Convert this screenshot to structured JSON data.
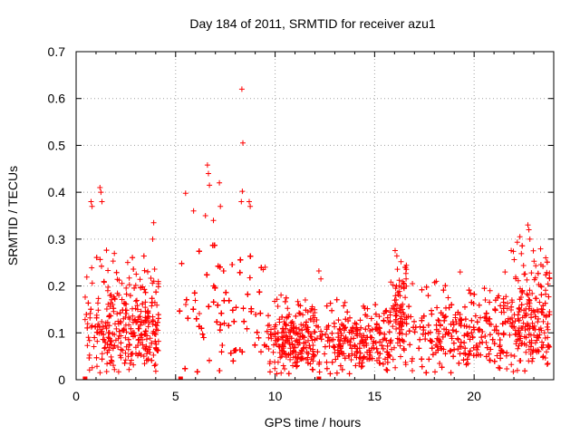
{
  "chart_data": {
    "type": "scatter",
    "title": "Day 184 of 2011, SRMTID for receiver azu1",
    "xlabel": "GPS time / hours",
    "ylabel": "SRMTID / TECUs",
    "xlim": [
      0,
      24
    ],
    "ylim": [
      0,
      0.7
    ],
    "xticks": [
      0,
      5,
      10,
      15,
      20
    ],
    "yticks": [
      0,
      0.1,
      0.2,
      0.3,
      0.4,
      0.5,
      0.6,
      0.7
    ],
    "xtick_labels": [
      "0",
      "5",
      "10",
      "15",
      "20"
    ],
    "ytick_labels": [
      "0",
      "0.1",
      "0.2",
      "0.3",
      "0.4",
      "0.5",
      "0.6",
      "0.7"
    ],
    "grid": true,
    "marker": "+",
    "color": "#ff0000",
    "series": [
      {
        "name": "azu1",
        "segments": [
          {
            "x_start": 0.45,
            "x_end": 4.15,
            "base": 0.07,
            "spread": 0.16
          },
          {
            "x_start": 5.2,
            "x_end": 9.6,
            "base": 0.08,
            "spread": 0.18
          },
          {
            "x_start": 9.6,
            "x_end": 12.0,
            "base": 0.06,
            "spread": 0.08
          },
          {
            "x_start": 12.0,
            "x_end": 15.8,
            "base": 0.06,
            "spread": 0.07
          },
          {
            "x_start": 15.8,
            "x_end": 16.6,
            "base": 0.11,
            "spread": 0.09
          },
          {
            "x_start": 16.6,
            "x_end": 21.5,
            "base": 0.07,
            "spread": 0.09
          },
          {
            "x_start": 21.5,
            "x_end": 23.8,
            "base": 0.08,
            "spread": 0.16
          }
        ],
        "highlights": [
          {
            "x": 8.33,
            "y": 0.62
          },
          {
            "x": 8.38,
            "y": 0.505
          },
          {
            "x": 6.6,
            "y": 0.458
          },
          {
            "x": 6.65,
            "y": 0.44
          },
          {
            "x": 6.7,
            "y": 0.415
          },
          {
            "x": 5.5,
            "y": 0.398
          },
          {
            "x": 8.35,
            "y": 0.402
          },
          {
            "x": 8.3,
            "y": 0.38
          },
          {
            "x": 1.2,
            "y": 0.41
          },
          {
            "x": 1.25,
            "y": 0.4
          },
          {
            "x": 1.3,
            "y": 0.38
          },
          {
            "x": 0.75,
            "y": 0.38
          },
          {
            "x": 0.8,
            "y": 0.37
          },
          {
            "x": 7.2,
            "y": 0.42
          },
          {
            "x": 7.25,
            "y": 0.37
          },
          {
            "x": 8.75,
            "y": 0.37
          },
          {
            "x": 8.7,
            "y": 0.38
          },
          {
            "x": 3.9,
            "y": 0.335
          },
          {
            "x": 3.85,
            "y": 0.3
          },
          {
            "x": 6.5,
            "y": 0.35
          },
          {
            "x": 6.9,
            "y": 0.34
          },
          {
            "x": 5.9,
            "y": 0.36
          },
          {
            "x": 22.7,
            "y": 0.33
          },
          {
            "x": 22.75,
            "y": 0.32
          },
          {
            "x": 22.3,
            "y": 0.305
          },
          {
            "x": 22.8,
            "y": 0.3
          },
          {
            "x": 23.6,
            "y": 0.26
          },
          {
            "x": 12.2,
            "y": 0.232
          },
          {
            "x": 12.3,
            "y": 0.215
          },
          {
            "x": 19.3,
            "y": 0.23
          },
          {
            "x": 9.5,
            "y": 0.24
          },
          {
            "x": 9.4,
            "y": 0.235
          },
          {
            "x": 16.1,
            "y": 0.2
          },
          {
            "x": 16.9,
            "y": 0.205
          },
          {
            "x": 18.1,
            "y": 0.21
          },
          {
            "x": 20.8,
            "y": 0.19
          }
        ],
        "zeros": [
          0.45,
          5.25,
          12.2
        ]
      }
    ]
  }
}
